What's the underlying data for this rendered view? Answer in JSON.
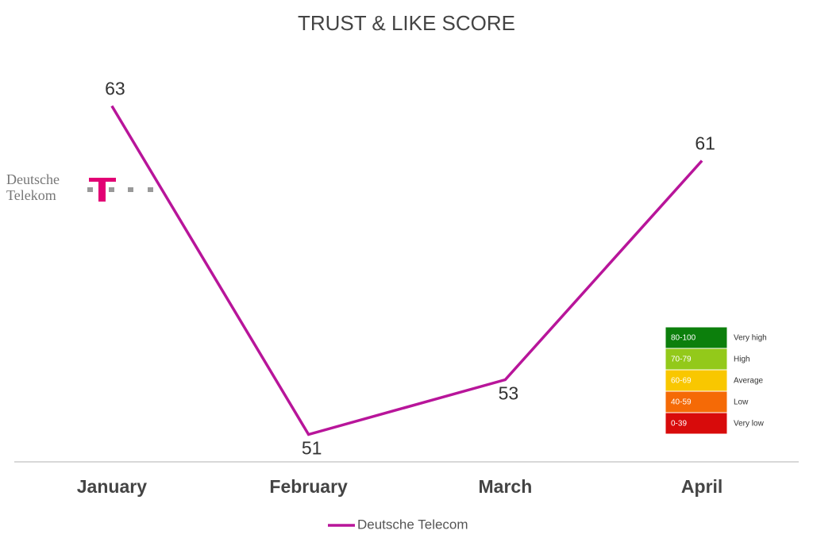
{
  "chart_data": {
    "type": "line",
    "title": "TRUST & LIKE SCORE",
    "categories": [
      "January",
      "February",
      "March",
      "April"
    ],
    "series": [
      {
        "name": "Deutsche Telecom",
        "color": "#b8159a",
        "values": [
          63,
          51,
          53,
          61
        ]
      }
    ],
    "ylim": [
      50,
      64
    ]
  },
  "logo": {
    "lines": [
      "Deutsche",
      "Telekom"
    ]
  },
  "score_scale": [
    {
      "range": "80-100",
      "label": "Very high",
      "color": "#0c7f0c"
    },
    {
      "range": "70-79",
      "label": "High",
      "color": "#93c91a"
    },
    {
      "range": "60-69",
      "label": "Average",
      "color": "#f9c700"
    },
    {
      "range": "40-59",
      "label": "Low",
      "color": "#f56a06"
    },
    {
      "range": "0-39",
      "label": "Very low",
      "color": "#d80b0b"
    }
  ]
}
